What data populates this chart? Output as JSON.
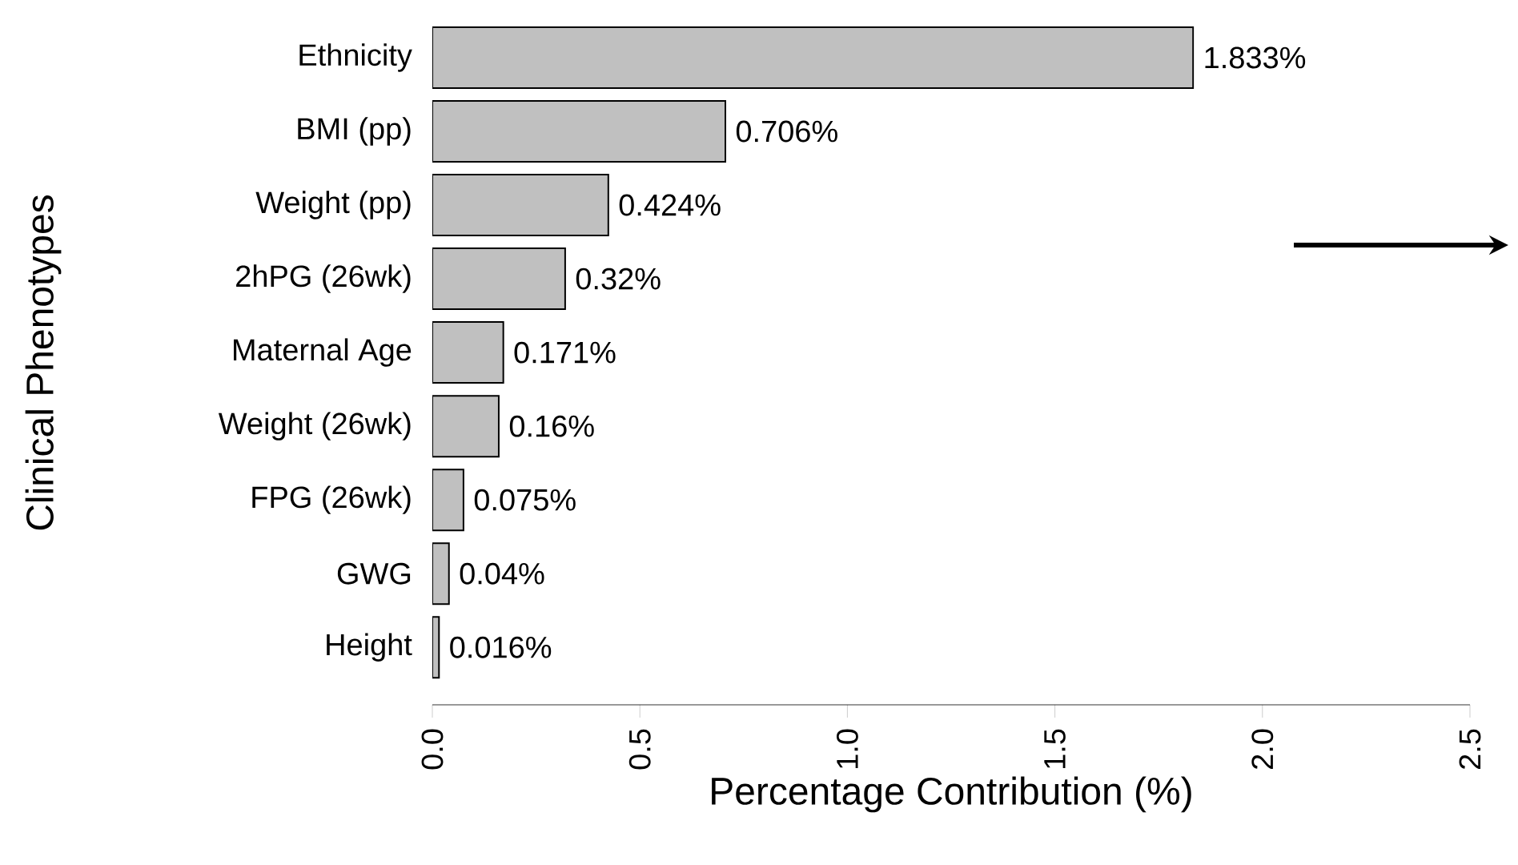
{
  "chart_data": {
    "type": "bar",
    "orientation": "horizontal",
    "xlabel": "Percentage Contribution (%)",
    "ylabel": "Clinical Phenotypes",
    "categories": [
      "Ethnicity",
      "BMI (pp)",
      "Weight (pp)",
      "2hPG (26wk)",
      "Maternal Age",
      "Weight (26wk)",
      "FPG (26wk)",
      "GWG",
      "Height"
    ],
    "values": [
      1.833,
      0.706,
      0.424,
      0.32,
      0.171,
      0.16,
      0.075,
      0.04,
      0.016
    ],
    "value_labels": [
      "1.833%",
      "0.706%",
      "0.424%",
      "0.32%",
      "0.171%",
      "0.16%",
      "0.075%",
      "0.04%",
      "0.016%"
    ],
    "color": "#c0c0c0",
    "xlim": [
      0,
      2.5
    ],
    "xticks": [
      {
        "value": 0,
        "label": "0.0"
      },
      {
        "value": 0.5,
        "label": "0.5"
      },
      {
        "value": 1,
        "label": "1.0"
      },
      {
        "value": 1.5,
        "label": "1.5"
      },
      {
        "value": 2,
        "label": "2.0"
      },
      {
        "value": 2.5,
        "label": "2.5"
      }
    ],
    "grid": false
  }
}
